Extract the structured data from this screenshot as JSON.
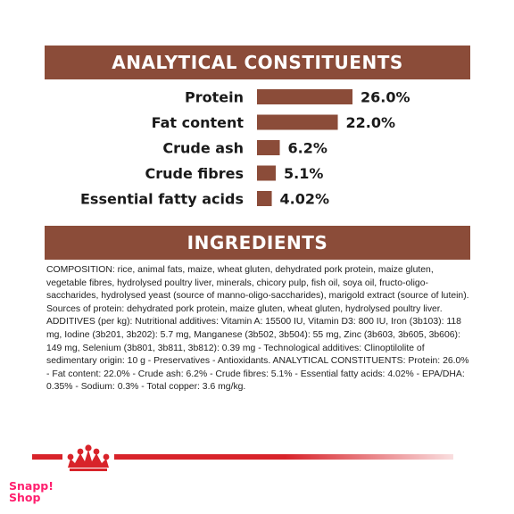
{
  "banners": {
    "analytical": "ANALYTICAL CONSTITUENTS",
    "ingredients": "INGREDIENTS"
  },
  "chart_data": {
    "type": "bar",
    "orientation": "horizontal",
    "title": "ANALYTICAL CONSTITUENTS",
    "categories": [
      "Protein",
      "Fat content",
      "Crude ash",
      "Crude fibres",
      "Essential fatty acids"
    ],
    "values": [
      26.0,
      22.0,
      6.2,
      5.1,
      4.02
    ],
    "value_labels": [
      "26.0%",
      "22.0%",
      "6.2%",
      "5.1%",
      "4.02%"
    ],
    "xlim": [
      0,
      26.0
    ],
    "grid": false,
    "legend": "none",
    "bar_color": "#8b4c39"
  },
  "ingredients": {
    "text": "COMPOSITION: rice, animal fats, maize, wheat gluten, dehydrated pork protein, maize gluten, vegetable fibres, hydrolysed poultry liver, minerals, chicory pulp, fish oil, soya oil, fructo-oligo-saccharides, hydrolysed yeast (source of manno-oligo-saccharides), marigold extract (source of lutein). Sources of protein: dehydrated pork protein, maize gluten, wheat gluten, hydrolysed poultry liver. ADDITIVES (per kg): Nutritional additives: Vitamin A: 15500 IU, Vitamin D3: 800 IU, Iron (3b103): 118 mg, Iodine (3b201, 3b202): 5.7 mg, Manganese (3b502, 3b504): 55 mg, Zinc (3b603, 3b605, 3b606): 149 mg, Selenium (3b801, 3b811, 3b812): 0.39 mg - Technological additives: Clinoptilolite of sedimentary origin: 10 g - Preservatives - Antioxidants. ANALYTICAL CONSTITUENTS: Protein: 26.0% - Fat content: 22.0% - Crude ash: 6.2% - Crude fibres: 5.1% - Essential fatty acids: 4.02% - EPA/DHA: 0.35% - Sodium: 0.3% - Total copper: 3.6 mg/kg."
  },
  "footer": {
    "brand_icon": "royal-canin-crown-icon",
    "brand_color": "#d8232a",
    "watermark_line1": "Snapp!",
    "watermark_line2": "Shop",
    "watermark_color": "#ff1f6e"
  }
}
